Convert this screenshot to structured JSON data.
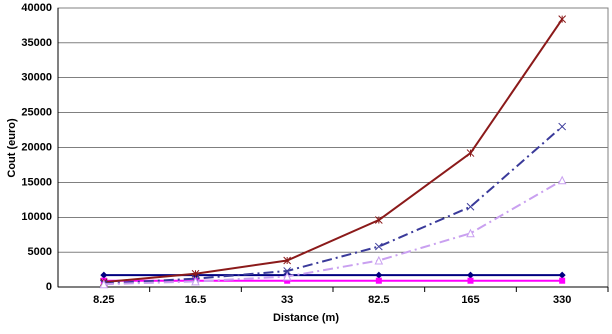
{
  "chart_data": {
    "type": "line",
    "x_label": "Distance (m)",
    "y_label": "Cout (euro)",
    "categories": [
      "8.25",
      "16.5",
      "33",
      "82.5",
      "165",
      "330"
    ],
    "ylim": [
      0,
      40000
    ],
    "yticks": [
      0,
      5000,
      10000,
      15000,
      20000,
      25000,
      30000,
      35000,
      40000
    ],
    "grid": true,
    "series": [
      {
        "color": "#000080",
        "marker": "diamond",
        "dash": "solid",
        "values": [
          1700,
          1700,
          1700,
          1700,
          1700,
          1700
        ]
      },
      {
        "color": "#ff00ff",
        "marker": "square",
        "dash": "solid",
        "values": [
          900,
          900,
          900,
          900,
          900,
          900
        ]
      },
      {
        "color": "#8b1a1a",
        "marker": "asterisk",
        "dash": "solid",
        "values": [
          700,
          1900,
          3800,
          9600,
          19200,
          38400
        ]
      },
      {
        "color": "#3a3a9a",
        "marker": "x",
        "dash": "dashdot",
        "values": [
          500,
          1200,
          2300,
          5800,
          11500,
          23000
        ]
      },
      {
        "color": "#c9a0f0",
        "marker": "triangle",
        "dash": "dashdot",
        "values": [
          400,
          800,
          1500,
          3800,
          7700,
          15300
        ]
      }
    ]
  }
}
